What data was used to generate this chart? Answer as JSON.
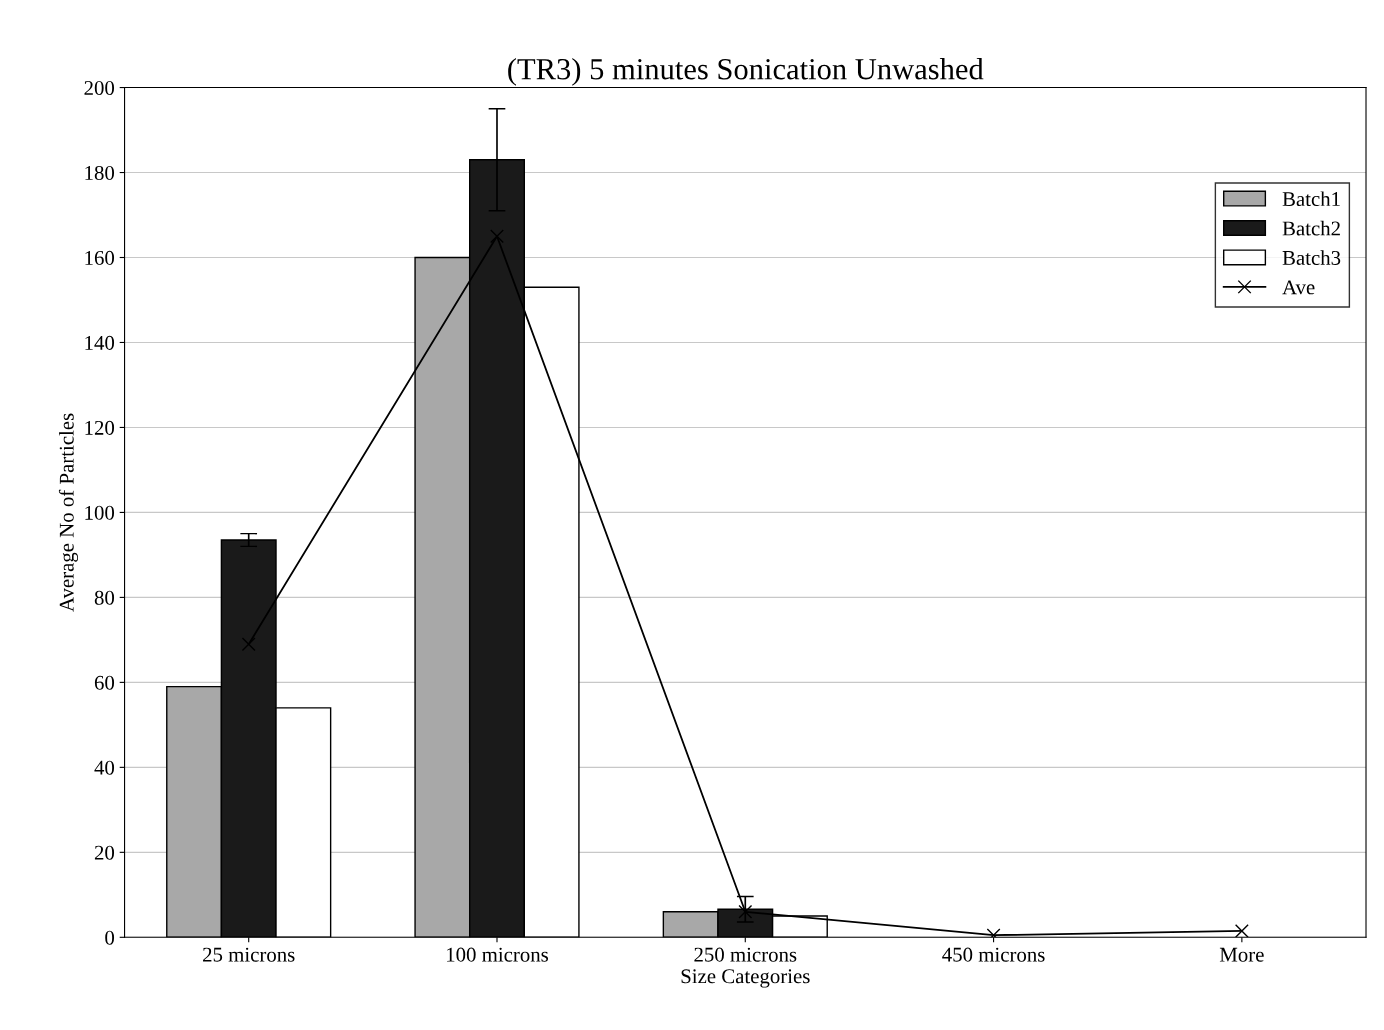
{
  "chart_data": {
    "type": "bar",
    "title": "(TR3) 5 minutes Sonication Unwashed",
    "xlabel": "Size Categories",
    "ylabel": "Average No of Particles",
    "categories": [
      "25 microns",
      "100 microns",
      "250 microns",
      "450 microns",
      "More"
    ],
    "series": [
      {
        "name": "Batch1",
        "color": "#a8a8a8",
        "values": [
          59,
          160,
          6,
          null,
          null
        ]
      },
      {
        "name": "Batch2",
        "color": "#1a1a1a",
        "values": [
          93.5,
          183,
          6.6,
          null,
          null
        ],
        "errors": [
          1.5,
          12,
          3,
          null,
          null
        ]
      },
      {
        "name": "Batch3",
        "color": "#ffffff",
        "values": [
          54,
          153,
          5,
          null,
          null
        ]
      },
      {
        "name": "Ave",
        "type": "line",
        "color": "#000000",
        "marker": "cross",
        "line_style": "solid",
        "values": [
          69,
          165,
          6,
          0.5,
          1.5
        ]
      }
    ],
    "ylim": [
      0,
      200
    ],
    "yticks": [
      0,
      20,
      40,
      60,
      80,
      100,
      120,
      140,
      160,
      180,
      200
    ],
    "grid": "y",
    "legend": "top right"
  }
}
